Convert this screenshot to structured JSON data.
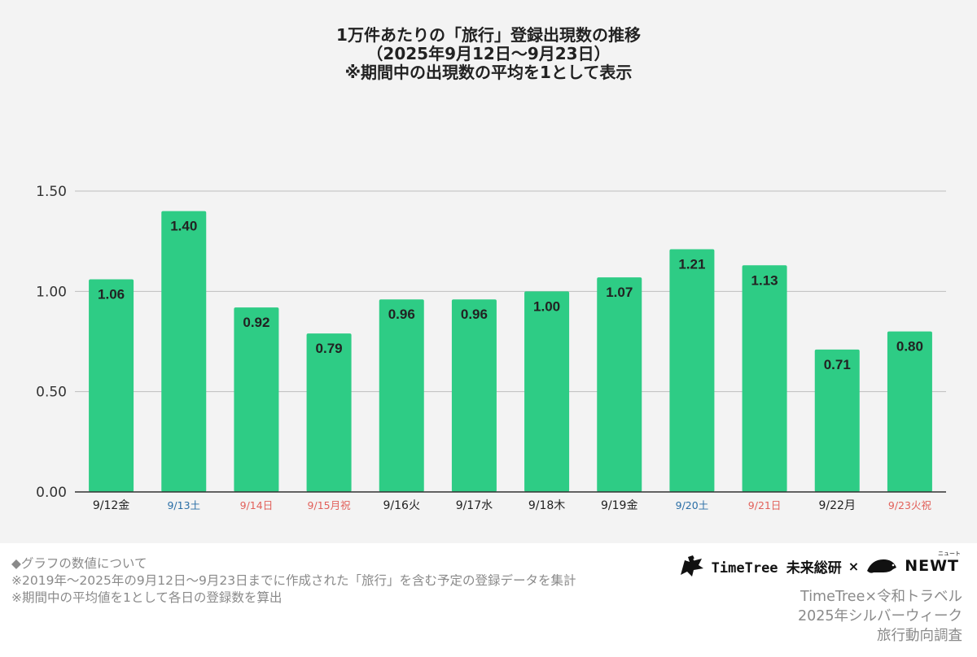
{
  "header": {
    "title_lines": [
      "1万件あたりの「旅行」登録出現数の推移",
      "（2025年9月12日〜9月23日）",
      "※期間中の出現数の平均を1として表示"
    ]
  },
  "chart_data": {
    "type": "bar",
    "title": "1万件あたりの「旅行」登録出現数の推移（2025年9月12日〜9月23日）※期間中の出現数の平均を1として表示",
    "categories": [
      "9/12金",
      "9/13土",
      "9/14日",
      "9/15月祝",
      "9/16火",
      "9/17水",
      "9/18木",
      "9/19金",
      "9/20土",
      "9/21日",
      "9/22月",
      "9/23火祝"
    ],
    "values": [
      1.06,
      1.4,
      0.92,
      0.79,
      0.96,
      0.96,
      1.0,
      1.07,
      1.21,
      1.13,
      0.71,
      0.8
    ],
    "data_labels": [
      "1.06",
      "1.40",
      "0.92",
      "0.79",
      "0.96",
      "0.96",
      "1.00",
      "1.07",
      "1.21",
      "1.13",
      "0.71",
      "0.80"
    ],
    "category_kinds": [
      "weekday",
      "saturday",
      "holiday",
      "holiday",
      "weekday",
      "weekday",
      "weekday",
      "weekday",
      "saturday",
      "holiday",
      "weekday",
      "holiday"
    ],
    "y_ticks": [
      "0.00",
      "0.50",
      "1.00",
      "1.50"
    ],
    "y_tick_values": [
      0,
      0.5,
      1.0,
      1.5
    ],
    "ylim": [
      0,
      1.5
    ],
    "xlabel": "",
    "ylabel": "",
    "grid": true,
    "legend": "none",
    "colors": {
      "bar": "#2ecc85",
      "grid": "#bdbdbd",
      "axis": "#333333",
      "value_label": "#222222",
      "weekday": "#222222",
      "saturday": "#2a6ea6",
      "holiday": "#e2605a"
    }
  },
  "footer": {
    "notes": [
      "◆グラフの数値について",
      "※2019年〜2025年の9月12日〜9月23日までに作成された「旅行」を含む予定の登録データを集計",
      "※期間中の平均値を1として各日の登録数を算出"
    ],
    "logo_timetree": "TimeTree 未来総研",
    "logo_times": "×",
    "logo_newt": "NEWT",
    "logo_newt_kana": "ニュート",
    "credit_lines": [
      "TimeTree×令和トラベル",
      "2025年シルバーウィーク",
      "旅行動向調査"
    ]
  }
}
